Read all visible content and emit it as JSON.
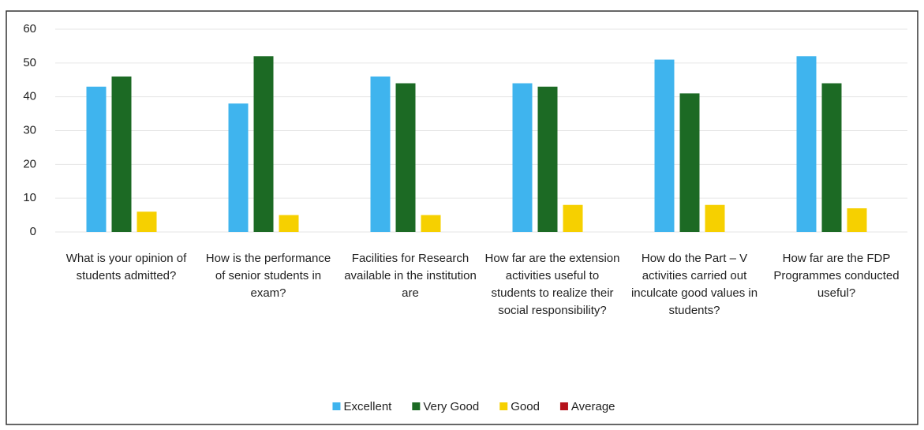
{
  "chart_data": {
    "type": "bar",
    "categories": [
      "What is your opinion of students admitted?",
      "How is the performance of senior students in exam?",
      "Facilities for Research available in the institution are",
      "How far are the extension activities useful to students to realize their social responsibility?",
      "How do the Part – V activities carried out inculcate good values in students?",
      "How far are the FDP Programmes conducted useful?"
    ],
    "series": [
      {
        "name": "Excellent",
        "color": "#3fb4ee",
        "values": [
          43,
          38,
          46,
          44,
          51,
          52
        ]
      },
      {
        "name": "Very Good",
        "color": "#1c6a24",
        "values": [
          46,
          52,
          44,
          43,
          41,
          44
        ]
      },
      {
        "name": "Good",
        "color": "#f6d000",
        "values": [
          6,
          5,
          5,
          8,
          8,
          7
        ]
      },
      {
        "name": "Average",
        "color": "#b5121b",
        "values": [
          0,
          0,
          0,
          0,
          0,
          0
        ]
      }
    ],
    "ylim": [
      0,
      60
    ],
    "yticks": [
      0,
      10,
      20,
      30,
      40,
      50,
      60
    ],
    "grid": true,
    "legend": "bottom"
  }
}
